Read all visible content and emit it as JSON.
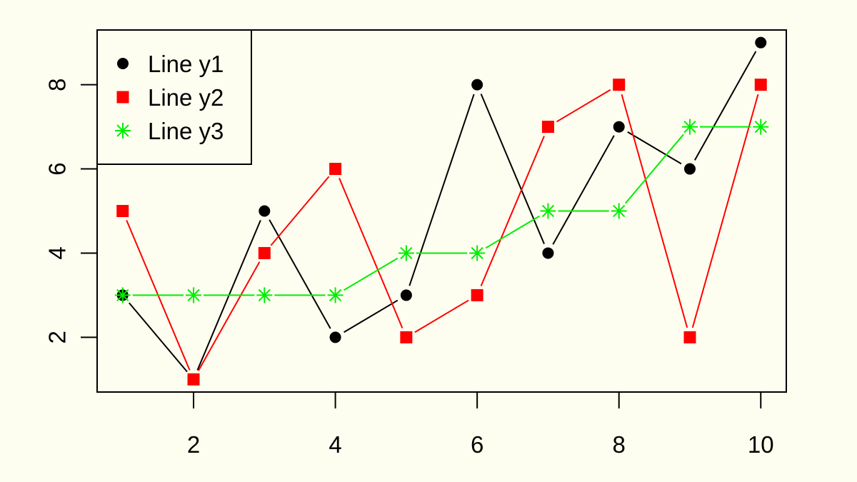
{
  "chart_data": {
    "type": "line",
    "title": "",
    "xlabel": "",
    "ylabel": "",
    "x": [
      1,
      2,
      3,
      4,
      5,
      6,
      7,
      8,
      9,
      10
    ],
    "xlim": [
      0.64,
      10.36
    ],
    "ylim": [
      0.7,
      9.3
    ],
    "x_ticks": [
      2,
      4,
      6,
      8,
      10
    ],
    "y_ticks": [
      2,
      4,
      6,
      8
    ],
    "x_tick_labels": [
      "2",
      "4",
      "6",
      "8",
      "10"
    ],
    "y_tick_labels": [
      "2",
      "4",
      "6",
      "8"
    ],
    "grid": false,
    "legend_position": "top-left",
    "background": "#fefef0",
    "series": [
      {
        "name": "Line y1",
        "values": [
          3,
          1,
          5,
          2,
          3,
          8,
          4,
          7,
          6,
          9
        ],
        "color": "#000000",
        "marker": "circle"
      },
      {
        "name": "Line y2",
        "values": [
          5,
          1,
          4,
          6,
          2,
          3,
          7,
          8,
          2,
          8
        ],
        "color": "#ff0000",
        "marker": "square"
      },
      {
        "name": "Line y3",
        "values": [
          3,
          3,
          3,
          3,
          4,
          4,
          5,
          5,
          7,
          7
        ],
        "color": "#00ee00",
        "marker": "asterisk"
      }
    ]
  }
}
